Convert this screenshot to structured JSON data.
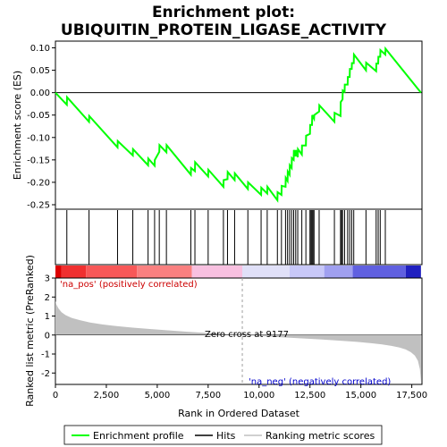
{
  "chart_data": {
    "type": "line",
    "title_line1": "Enrichment plot:",
    "title_line2": "UBIQUITIN_PROTEIN_LIGASE_ACTIVITY",
    "top_panel": {
      "ylabel": "Enrichment score (ES)",
      "ylim": [
        -0.26,
        0.115
      ],
      "yticks": [
        -0.25,
        -0.2,
        -0.15,
        -0.1,
        -0.05,
        0.0,
        0.05,
        0.1
      ],
      "ytick_labels": [
        "-0.25",
        "-0.20",
        "-0.15",
        "-0.10",
        "-0.05",
        "0.00",
        "0.05",
        "0.10"
      ],
      "series": [
        {
          "name": "Enrichment profile",
          "color": "#00ff00",
          "x": [
            0,
            560,
            570,
            1650,
            1660,
            3050,
            3060,
            3800,
            3810,
            4550,
            4560,
            4870,
            4880,
            5100,
            5110,
            5450,
            5460,
            6650,
            6660,
            6850,
            6860,
            7500,
            7510,
            8250,
            8260,
            8450,
            8460,
            8800,
            8810,
            9450,
            9460,
            10100,
            10110,
            10400,
            10410,
            10900,
            10910,
            11100,
            11110,
            11300,
            11310,
            11400,
            11410,
            11500,
            11510,
            11600,
            11610,
            11700,
            11710,
            11800,
            11810,
            11900,
            11910,
            12100,
            12110,
            12300,
            12310,
            12500,
            12510,
            12600,
            12610,
            12700,
            12710,
            12950,
            12960,
            13700,
            13710,
            14000,
            14010,
            14100,
            14110,
            14200,
            14210,
            14350,
            14360,
            14450,
            14460,
            14550,
            14560,
            14650,
            14660,
            15250,
            15260,
            15750,
            15760,
            15850,
            15860,
            15950,
            15960,
            16200,
            16210,
            17950
          ],
          "y": [
            0.0,
            -0.027,
            -0.01,
            -0.065,
            -0.052,
            -0.122,
            -0.108,
            -0.14,
            -0.126,
            -0.162,
            -0.147,
            -0.163,
            -0.15,
            -0.132,
            -0.117,
            -0.133,
            -0.117,
            -0.183,
            -0.168,
            -0.175,
            -0.155,
            -0.187,
            -0.172,
            -0.21,
            -0.195,
            -0.193,
            -0.177,
            -0.195,
            -0.18,
            -0.215,
            -0.2,
            -0.228,
            -0.212,
            -0.225,
            -0.21,
            -0.24,
            -0.222,
            -0.228,
            -0.208,
            -0.21,
            -0.19,
            -0.197,
            -0.176,
            -0.183,
            -0.162,
            -0.168,
            -0.146,
            -0.15,
            -0.128,
            -0.142,
            -0.128,
            -0.144,
            -0.126,
            -0.138,
            -0.118,
            -0.118,
            -0.096,
            -0.092,
            -0.072,
            -0.072,
            -0.05,
            -0.058,
            -0.05,
            -0.042,
            -0.028,
            -0.065,
            -0.045,
            -0.052,
            -0.021,
            -0.015,
            0.005,
            0.002,
            0.018,
            0.018,
            0.035,
            0.035,
            0.053,
            0.053,
            0.066,
            0.066,
            0.085,
            0.05,
            0.067,
            0.048,
            0.065,
            0.065,
            0.08,
            0.08,
            0.095,
            0.085,
            0.098,
            0.0
          ]
        }
      ]
    },
    "hits_panel": {
      "hit_positions": [
        560,
        1650,
        3050,
        3800,
        4550,
        4870,
        5100,
        5450,
        6650,
        6850,
        7500,
        8250,
        8450,
        8800,
        9450,
        10100,
        10400,
        10900,
        11100,
        11300,
        11400,
        11500,
        11600,
        11700,
        11800,
        11900,
        12100,
        12300,
        12500,
        12550,
        12600,
        12650,
        12700,
        12950,
        13700,
        14000,
        14050,
        14100,
        14200,
        14350,
        14450,
        14550,
        14650,
        15250,
        15750,
        15850,
        15950,
        16200
      ],
      "bar_segments": [
        {
          "from": 0,
          "to": 300,
          "color": "#dd0000"
        },
        {
          "from": 300,
          "to": 1500,
          "color": "#f03030"
        },
        {
          "from": 1500,
          "to": 4000,
          "color": "#f85858"
        },
        {
          "from": 4000,
          "to": 6700,
          "color": "#fa8080"
        },
        {
          "from": 6700,
          "to": 9177,
          "color": "#f8c0e0"
        },
        {
          "from": 9177,
          "to": 11500,
          "color": "#e0e0f8"
        },
        {
          "from": 11500,
          "to": 13200,
          "color": "#c8c8f8"
        },
        {
          "from": 13200,
          "to": 14600,
          "color": "#a0a0f0"
        },
        {
          "from": 14600,
          "to": 17200,
          "color": "#6060e0"
        },
        {
          "from": 17200,
          "to": 17950,
          "color": "#2020c0"
        }
      ]
    },
    "bottom_panel": {
      "ylabel": "Ranked list metric (PreRanked)",
      "xlabel": "Rank in Ordered Dataset",
      "ylim": [
        -2.6,
        3.0
      ],
      "yticks": [
        3,
        2,
        1,
        0,
        -1,
        -2
      ],
      "ytick_labels": [
        "3",
        "2",
        "1",
        "0",
        "-1",
        "-2"
      ],
      "xlim": [
        0,
        18000
      ],
      "xticks": [
        0,
        2500,
        5000,
        7500,
        10000,
        12500,
        15000,
        17500
      ],
      "xtick_labels": [
        "0",
        "2,500",
        "5,000",
        "7,500",
        "10,000",
        "12,500",
        "15,000",
        "17,500"
      ],
      "metric_curve": {
        "x": [
          0,
          50,
          150,
          300,
          500,
          800,
          1200,
          1700,
          2300,
          3000,
          3800,
          4700,
          5600,
          6500,
          7400,
          8300,
          9177,
          10000,
          11000,
          12000,
          13000,
          14000,
          14800,
          15500,
          16000,
          16500,
          16900,
          17200,
          17450,
          17650,
          17800,
          17900,
          17950
        ],
        "y": [
          1.8,
          1.6,
          1.4,
          1.2,
          1.05,
          0.9,
          0.78,
          0.66,
          0.56,
          0.47,
          0.39,
          0.31,
          0.24,
          0.17,
          0.11,
          0.05,
          0.0,
          -0.05,
          -0.11,
          -0.17,
          -0.23,
          -0.3,
          -0.36,
          -0.43,
          -0.49,
          -0.57,
          -0.66,
          -0.76,
          -0.9,
          -1.08,
          -1.35,
          -1.8,
          -2.5
        ]
      },
      "zero_cross": 9177,
      "annotations": {
        "pos": "'na_pos' (positively correlated)",
        "neg": "'na_neg' (negatively correlated)",
        "zero": "Zero cross at 9177"
      }
    },
    "legend": [
      {
        "label": "Enrichment profile",
        "color": "#00ff00"
      },
      {
        "label": "Hits",
        "color": "#000000"
      },
      {
        "label": "Ranking metric scores",
        "color": "#c0c0c0"
      }
    ]
  }
}
